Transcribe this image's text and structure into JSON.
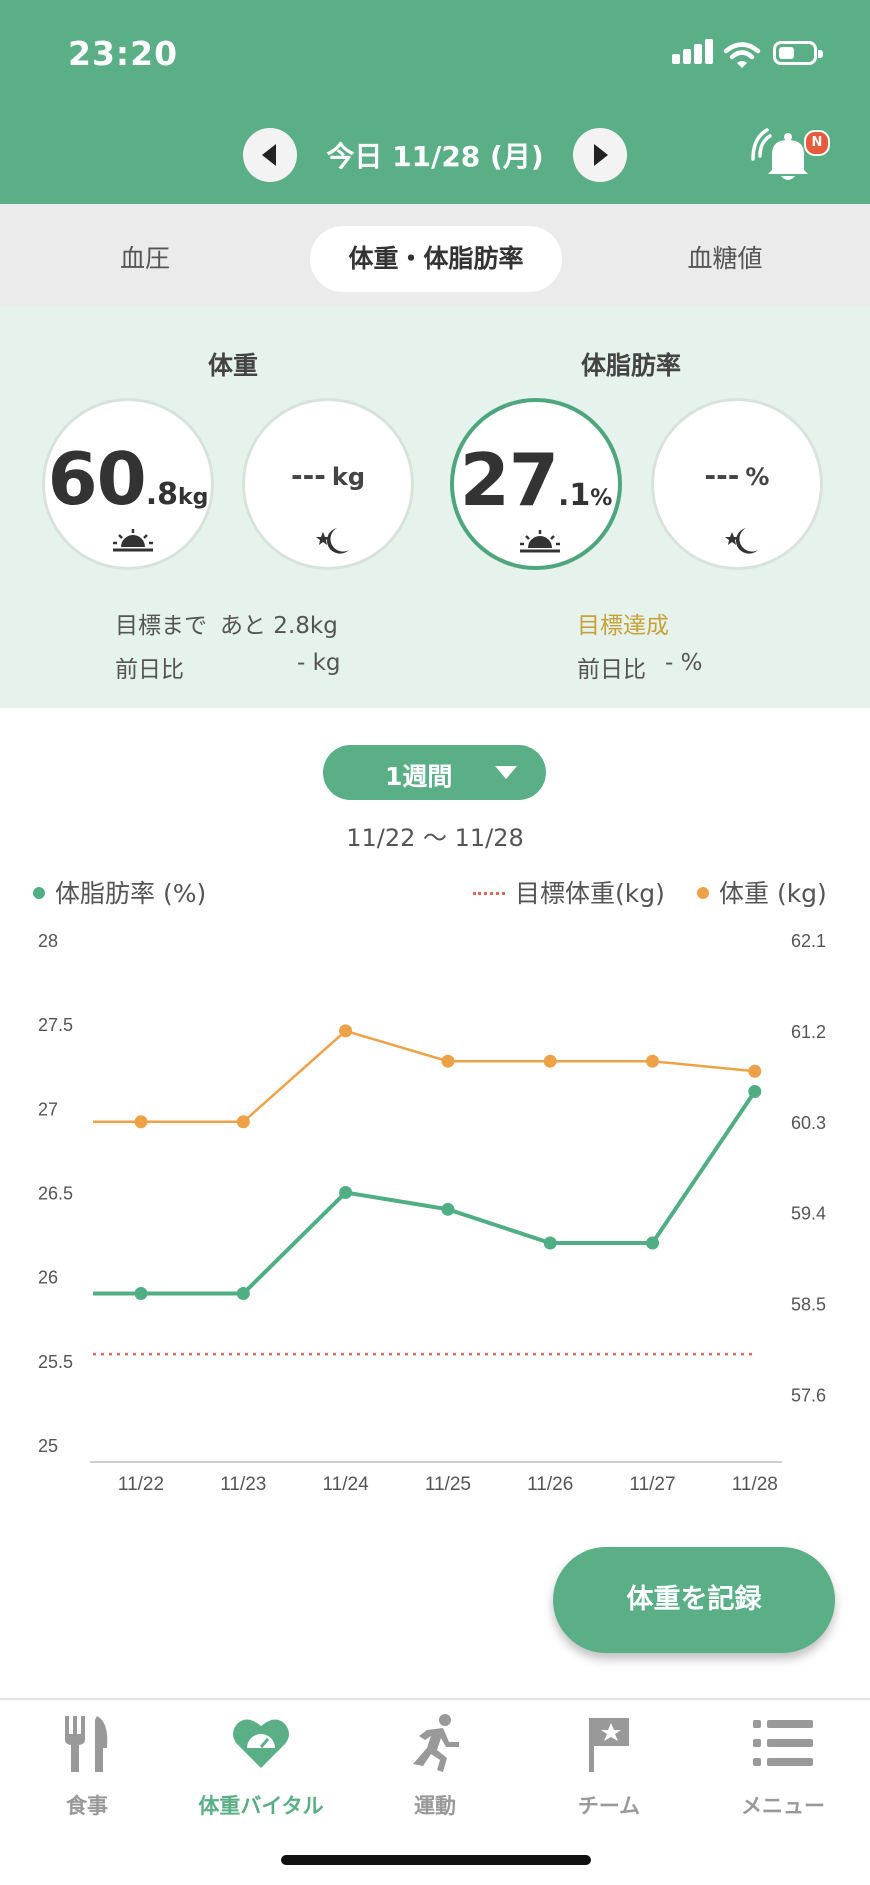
{
  "status_bar": {
    "time": "23:20"
  },
  "header": {
    "date_title": "今日 11/28 (月)",
    "notification_badge": "N"
  },
  "tabs": [
    {
      "label": "血圧",
      "active": false
    },
    {
      "label": "体重・体脂肪率",
      "active": true
    },
    {
      "label": "血糖値",
      "active": false
    }
  ],
  "summary": {
    "weight": {
      "title": "体重",
      "morning": {
        "int": "60",
        "dec": ".8",
        "unit": "kg"
      },
      "evening": {
        "value": "---",
        "unit": "kg"
      },
      "goal_label": "目標まで",
      "goal_text": "あと 2.8kg",
      "prev_label": "前日比",
      "prev_value": "- kg"
    },
    "body_fat": {
      "title": "体脂肪率",
      "morning": {
        "int": "27",
        "dec": ".1",
        "unit": "%"
      },
      "evening": {
        "value": "---",
        "unit": "%"
      },
      "goal_text": "目標達成",
      "prev_label": "前日比",
      "prev_value": "- %"
    }
  },
  "period": {
    "label": "1週間",
    "range": "11/22 〜 11/28"
  },
  "legend": {
    "body_fat": "体脂肪率 (%)",
    "target": "目標体重(kg)",
    "weight": "体重 (kg)"
  },
  "colors": {
    "accent": "#5aaf87",
    "body_fat_line": "#4fae84",
    "weight_line": "#eea247",
    "target_line": "#e06a5a",
    "goal_achieved": "#c9a13a"
  },
  "chart_data": {
    "type": "line",
    "categories": [
      "11/22",
      "11/23",
      "11/24",
      "11/25",
      "11/26",
      "11/27",
      "11/28"
    ],
    "left_axis": {
      "ticks": [
        "28",
        "27.5",
        "27",
        "26.5",
        "26",
        "25.5",
        "25"
      ],
      "ylim": [
        25,
        28
      ]
    },
    "right_axis": {
      "ticks": [
        "62.1",
        "61.2",
        "60.3",
        "59.4",
        "58.5",
        "57.6"
      ],
      "ylim": [
        57.1,
        62.1
      ]
    },
    "series": [
      {
        "name": "体脂肪率 (%)",
        "axis": "left",
        "values": [
          25.9,
          25.9,
          26.5,
          26.4,
          26.2,
          26.2,
          27.1
        ]
      },
      {
        "name": "体重 (kg)",
        "axis": "right",
        "values": [
          60.3,
          60.3,
          61.2,
          60.9,
          60.9,
          60.9,
          60.8
        ]
      },
      {
        "name": "目標体重(kg)",
        "axis": "right",
        "values": [
          58.0,
          58.0,
          58.0,
          58.0,
          58.0,
          58.0,
          58.0
        ],
        "style": "dotted"
      }
    ],
    "grid": false,
    "legend_position": "top"
  },
  "fab": {
    "label": "体重を記録"
  },
  "bottom_nav": [
    {
      "label": "食事",
      "icon": "fork-knife-icon",
      "active": false
    },
    {
      "label": "体重バイタル",
      "icon": "heart-scale-icon",
      "active": true
    },
    {
      "label": "運動",
      "icon": "running-icon",
      "active": false
    },
    {
      "label": "チーム",
      "icon": "flag-icon",
      "active": false
    },
    {
      "label": "メニュー",
      "icon": "menu-list-icon",
      "active": false
    }
  ]
}
